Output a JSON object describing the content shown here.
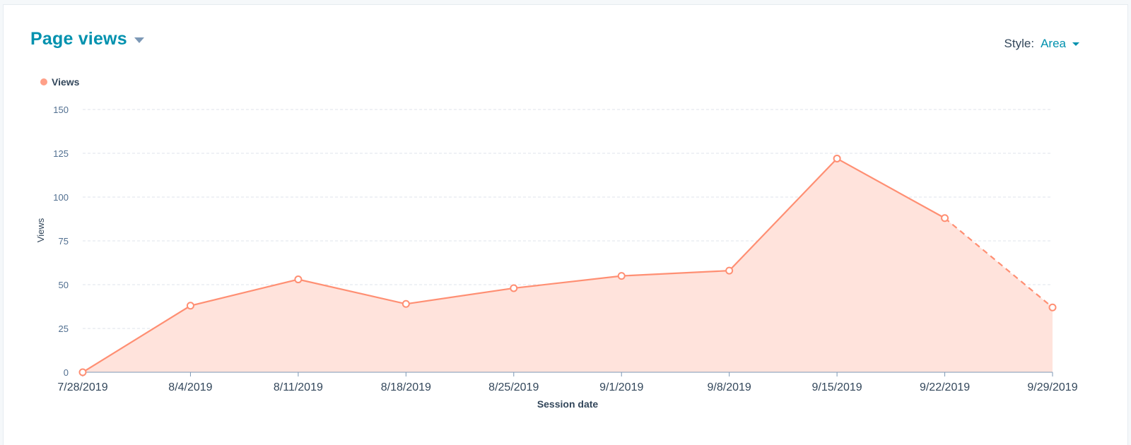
{
  "header": {
    "title": "Page views",
    "style_label": "Style:",
    "style_value": "Area"
  },
  "colors": {
    "accent": "#0091ae",
    "series": "#ff8f73",
    "area_fill": "#ffe3dc",
    "grid": "#dfe3eb",
    "text": "#33475b"
  },
  "chart_data": {
    "type": "area",
    "categories": [
      "7/28/2019",
      "8/4/2019",
      "8/11/2019",
      "8/18/2019",
      "8/25/2019",
      "9/1/2019",
      "9/8/2019",
      "9/15/2019",
      "9/22/2019",
      "9/29/2019"
    ],
    "series": [
      {
        "name": "Views",
        "values": [
          0,
          38,
          53,
          39,
          48,
          55,
          58,
          122,
          88,
          37
        ]
      }
    ],
    "partial_period_from_index": 8,
    "xlabel": "Session date",
    "ylabel": "Views",
    "ylim": [
      0,
      150
    ],
    "yticks": [
      0,
      25,
      50,
      75,
      100,
      125,
      150
    ],
    "grid": true,
    "legend_position": "top-left"
  }
}
